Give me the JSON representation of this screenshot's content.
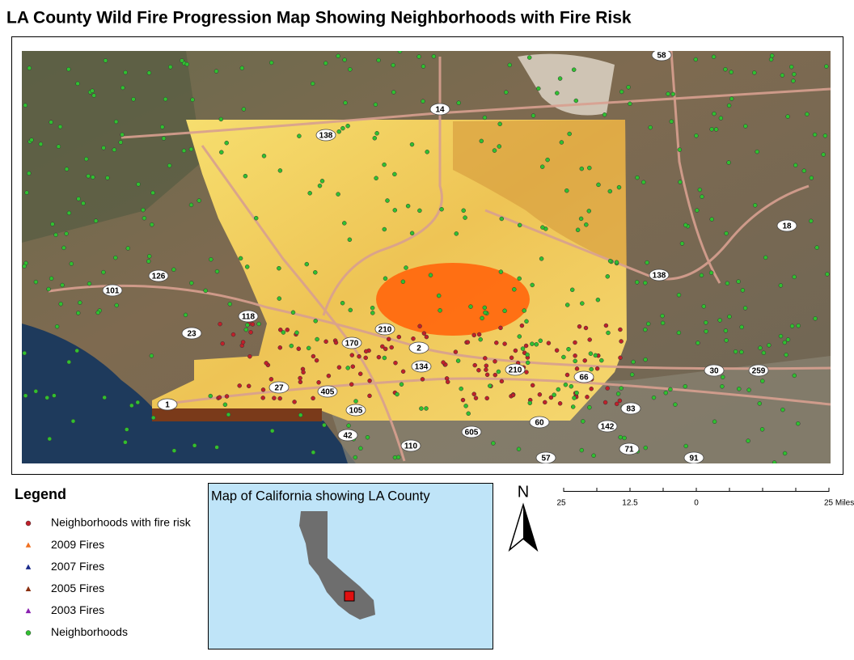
{
  "title": "LA County Wild Fire Progression Map Showing Neighborhoods with Fire Risk",
  "legend": {
    "title": "Legend",
    "items": [
      {
        "label": "Neighborhoods with fire risk",
        "color": "#c0202a",
        "shape": "circle"
      },
      {
        "label": "2009 Fires",
        "color": "#f07020",
        "shape": "triangle"
      },
      {
        "label": "2007 Fires",
        "color": "#1a2a8a",
        "shape": "triangle"
      },
      {
        "label": "2005 Fires",
        "color": "#8a3010",
        "shape": "triangle"
      },
      {
        "label": "2003 Fires",
        "color": "#8a20b0",
        "shape": "triangle"
      },
      {
        "label": "Neighborhoods",
        "color": "#30c030",
        "shape": "circle"
      }
    ]
  },
  "inset": {
    "title": "Map of California showing LA County"
  },
  "north": "N",
  "scale": {
    "labels": [
      "25",
      "12.5",
      "0",
      "25 Miles"
    ]
  },
  "highways": [
    "58",
    "14",
    "138",
    "18",
    "138",
    "126",
    "101",
    "118",
    "23",
    "210",
    "170",
    "2",
    "134",
    "210",
    "66",
    "30",
    "259",
    "1",
    "27",
    "405",
    "105",
    "42",
    "110",
    "605",
    "60",
    "142",
    "83",
    "71",
    "57",
    "91"
  ]
}
